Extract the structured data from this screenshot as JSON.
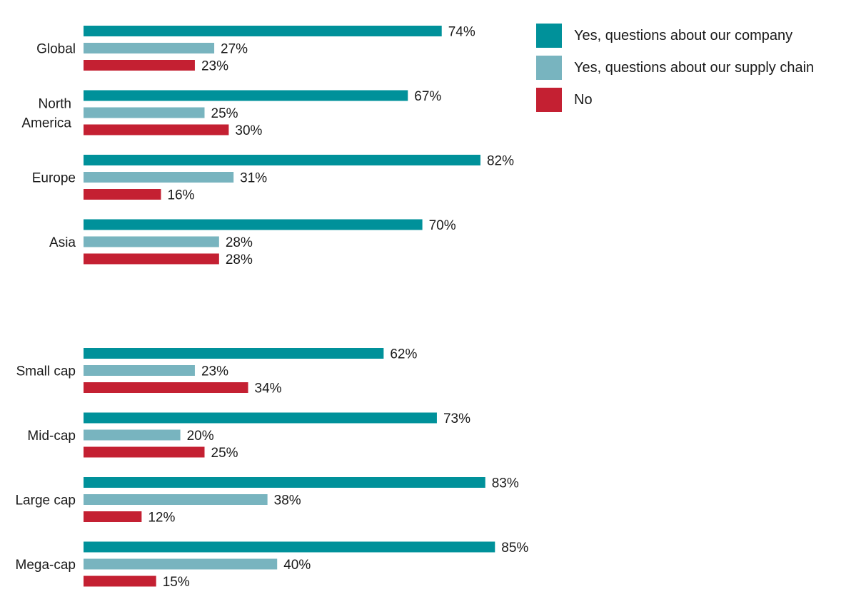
{
  "chart_data": {
    "type": "bar",
    "orientation": "horizontal",
    "value_suffix": "%",
    "xlim": [
      0,
      100
    ],
    "grid": false,
    "legend_position": "top-right",
    "series": [
      {
        "name": "Yes, questions about our company",
        "color": "#00919A"
      },
      {
        "name": "Yes, questions about our supply chain",
        "color": "#78B4BF"
      },
      {
        "name": "No",
        "color": "#C42032"
      }
    ],
    "groups": [
      {
        "id": "region",
        "categories": [
          {
            "label_lines": [
              "Global"
            ],
            "values": [
              74,
              27,
              23
            ]
          },
          {
            "label_lines": [
              "North",
              "America"
            ],
            "values": [
              67,
              25,
              30
            ]
          },
          {
            "label_lines": [
              "Europe"
            ],
            "values": [
              82,
              31,
              16
            ]
          },
          {
            "label_lines": [
              "Asia"
            ],
            "values": [
              70,
              28,
              28
            ]
          }
        ]
      },
      {
        "id": "market-cap",
        "categories": [
          {
            "label_lines": [
              "Small cap"
            ],
            "values": [
              62,
              23,
              34
            ]
          },
          {
            "label_lines": [
              "Mid-cap"
            ],
            "values": [
              73,
              20,
              25
            ]
          },
          {
            "label_lines": [
              "Large cap"
            ],
            "values": [
              83,
              38,
              12
            ]
          },
          {
            "label_lines": [
              "Mega-cap"
            ],
            "values": [
              85,
              40,
              15
            ]
          }
        ]
      }
    ]
  }
}
